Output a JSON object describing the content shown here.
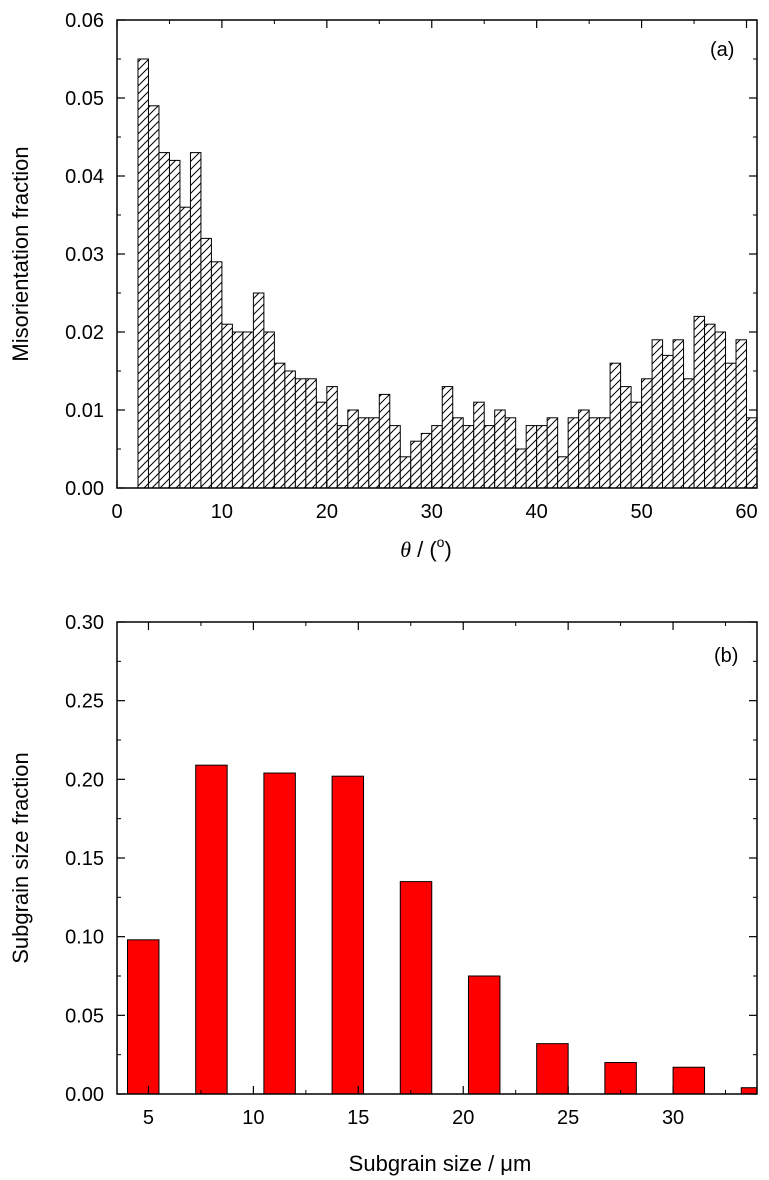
{
  "chart_data": [
    {
      "type": "bar",
      "panel_label": "(a)",
      "xlabel_symbol": "θ",
      "xlabel_rest": " / (",
      "xlabel_degree": "o",
      "xlabel_close": ")",
      "ylabel": "Misorientation fraction",
      "xlim": [
        0,
        61
      ],
      "ylim": [
        0,
        0.06
      ],
      "xticks": [
        0,
        10,
        20,
        30,
        40,
        50,
        60
      ],
      "xtick_labels": [
        "0",
        "10",
        "20",
        "30",
        "40",
        "50",
        "60"
      ],
      "yticks": [
        0,
        0.01,
        0.02,
        0.03,
        0.04,
        0.05,
        0.06
      ],
      "ytick_labels": [
        "0.00",
        "0.01",
        "0.02",
        "0.03",
        "0.04",
        "0.05",
        "0.06"
      ],
      "bin_start": 2,
      "bin_width": 1,
      "fill": "hatch",
      "values": [
        0.055,
        0.049,
        0.043,
        0.042,
        0.036,
        0.043,
        0.032,
        0.029,
        0.021,
        0.02,
        0.02,
        0.025,
        0.02,
        0.016,
        0.015,
        0.014,
        0.014,
        0.011,
        0.013,
        0.008,
        0.01,
        0.009,
        0.009,
        0.012,
        0.008,
        0.004,
        0.006,
        0.007,
        0.008,
        0.013,
        0.009,
        0.008,
        0.011,
        0.008,
        0.01,
        0.009,
        0.005,
        0.008,
        0.008,
        0.009,
        0.004,
        0.009,
        0.01,
        0.009,
        0.009,
        0.016,
        0.013,
        0.011,
        0.014,
        0.019,
        0.017,
        0.019,
        0.014,
        0.022,
        0.021,
        0.02,
        0.016,
        0.019,
        0.009
      ]
    },
    {
      "type": "bar",
      "panel_label": "(b)",
      "xlabel": "Subgrain size / μm",
      "ylabel": "Subgrain size fraction",
      "xlim": [
        3.5,
        34
      ],
      "ylim": [
        0,
        0.3
      ],
      "xticks": [
        5,
        10,
        15,
        20,
        25,
        30
      ],
      "xtick_labels": [
        "5",
        "10",
        "15",
        "20",
        "25",
        "30"
      ],
      "yticks": [
        0,
        0.05,
        0.1,
        0.15,
        0.2,
        0.25,
        0.3
      ],
      "ytick_labels": [
        "0.00",
        "0.05",
        "0.10",
        "0.15",
        "0.20",
        "0.25",
        "0.30"
      ],
      "bar_color": "#ff0000",
      "bar_width": 1.5,
      "x": [
        4.75,
        8.0,
        11.25,
        14.5,
        17.75,
        21.0,
        24.25,
        27.5,
        30.75,
        34.0
      ],
      "values": [
        0.098,
        0.209,
        0.204,
        0.202,
        0.135,
        0.075,
        0.032,
        0.02,
        0.017,
        0.004
      ]
    }
  ]
}
